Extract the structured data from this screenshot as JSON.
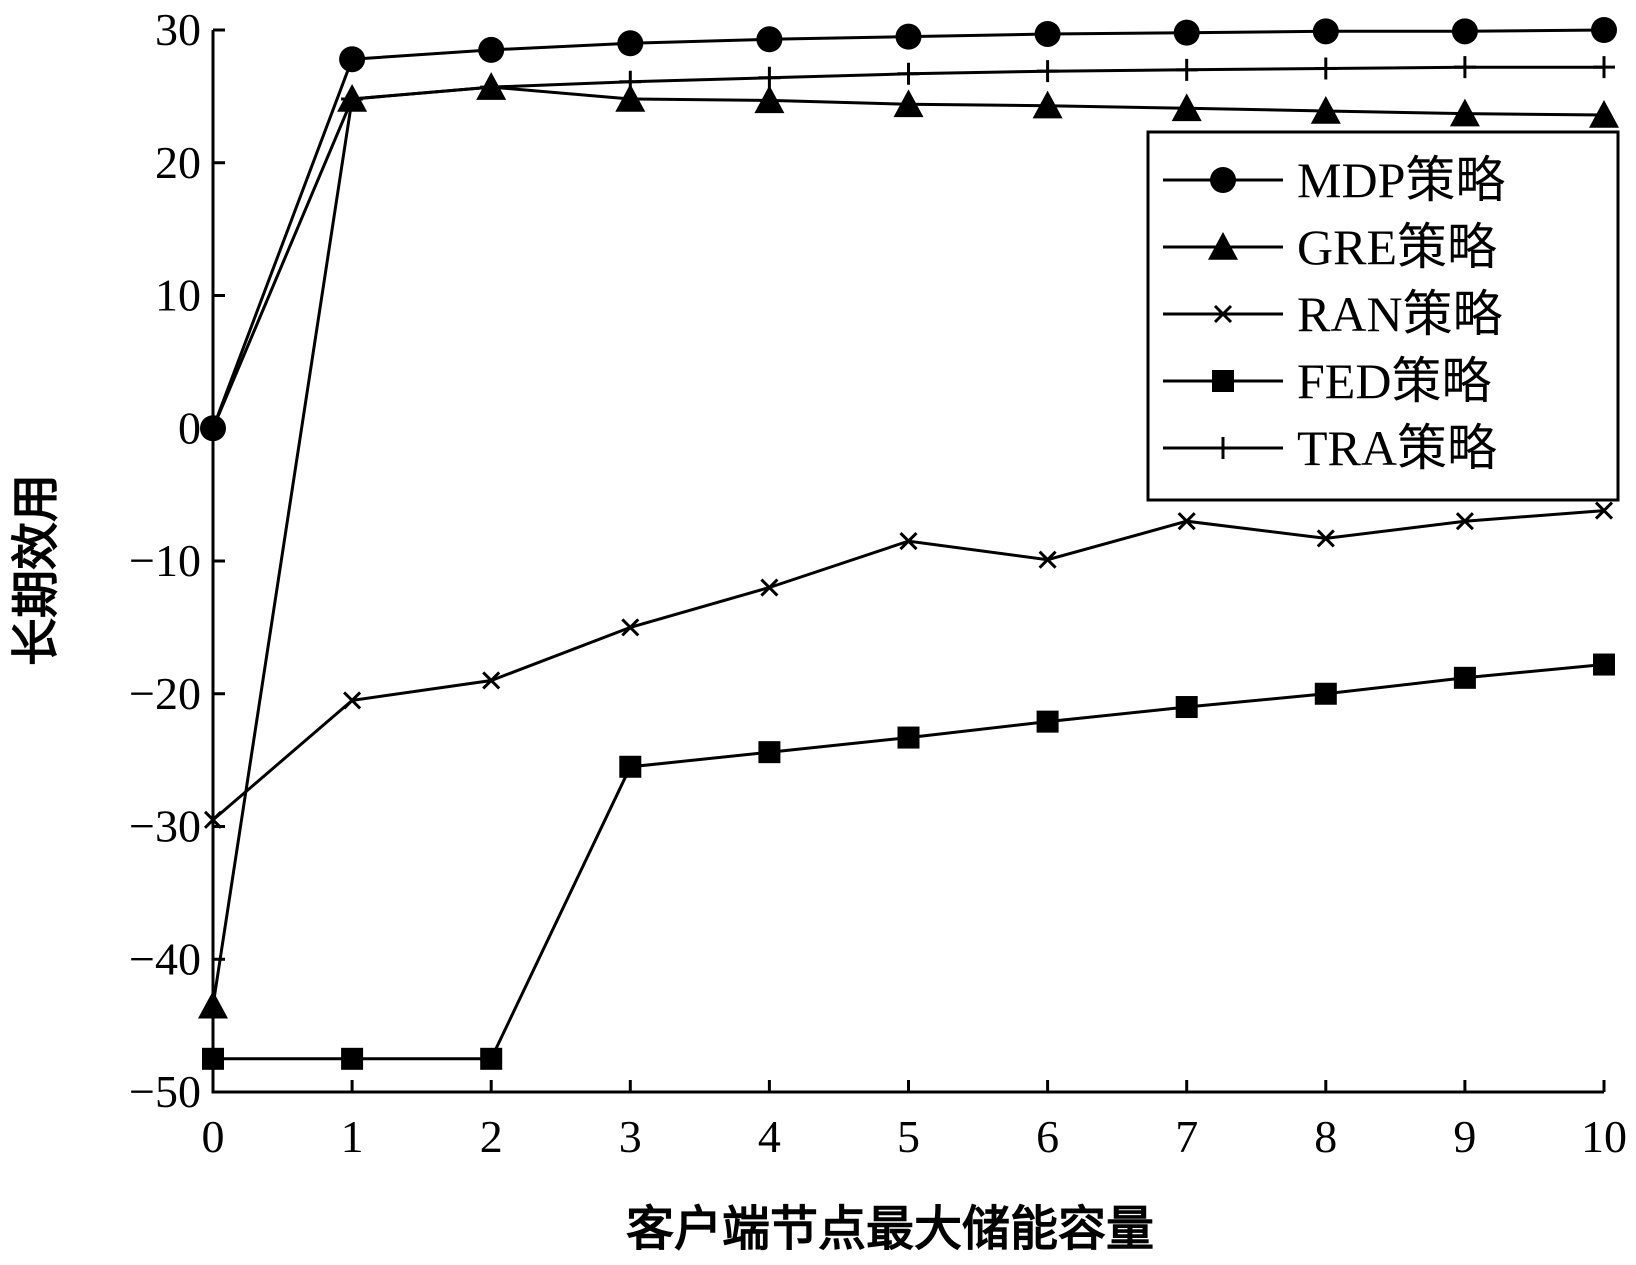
{
  "chart_data": {
    "type": "line",
    "title": "",
    "xlabel": "客户端节点最大储能容量",
    "ylabel": "长期效用",
    "x": [
      0,
      1,
      2,
      3,
      4,
      5,
      6,
      7,
      8,
      9,
      10
    ],
    "xlim": [
      0,
      10
    ],
    "ylim": [
      -50,
      30
    ],
    "xticks": [
      "0",
      "1",
      "2",
      "3",
      "4",
      "5",
      "6",
      "7",
      "8",
      "9",
      "10"
    ],
    "yticks": [
      "30",
      "20",
      "10",
      "0",
      "−10",
      "−20",
      "−30",
      "−40",
      "−50"
    ],
    "ytick_values": [
      30,
      20,
      10,
      0,
      -10,
      -20,
      -30,
      -40,
      -50
    ],
    "grid": false,
    "legend_position": "top-right",
    "series": [
      {
        "name": "MDP策略",
        "marker": "circle",
        "values": [
          0,
          27.8,
          28.5,
          29.0,
          29.3,
          29.5,
          29.7,
          29.8,
          29.9,
          29.9,
          30.0
        ]
      },
      {
        "name": "GRE策略",
        "marker": "triangle",
        "values": [
          -43.5,
          24.8,
          25.7,
          24.8,
          24.7,
          24.4,
          24.3,
          24.1,
          23.9,
          23.7,
          23.6
        ]
      },
      {
        "name": "RAN策略",
        "marker": "x",
        "values": [
          -29.5,
          -20.5,
          -19.0,
          -15.0,
          -12.0,
          -8.5,
          -9.9,
          -7.0,
          -8.3,
          -7.0,
          -6.2
        ]
      },
      {
        "name": "FED策略",
        "marker": "square",
        "values": [
          -47.5,
          -47.5,
          -47.5,
          -25.5,
          -24.4,
          -23.3,
          -22.1,
          -21.0,
          -20.0,
          -18.8,
          -17.8
        ]
      },
      {
        "name": "TRA策略",
        "marker": "plus",
        "values": [
          0,
          24.8,
          25.7,
          26.1,
          26.4,
          26.7,
          26.9,
          27.0,
          27.1,
          27.2,
          27.2
        ]
      }
    ]
  }
}
